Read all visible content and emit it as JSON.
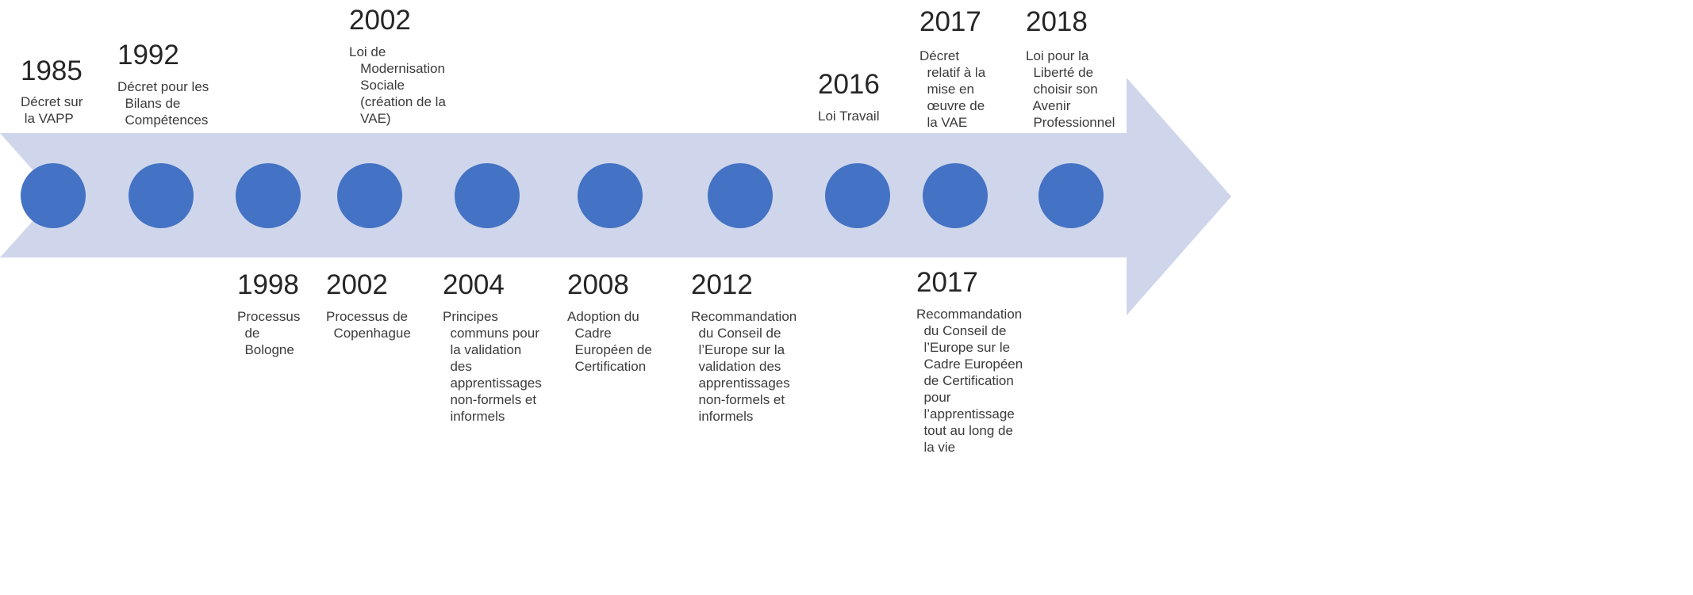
{
  "colors": {
    "arrow": "#cfd6ec",
    "circle": "#4472c4",
    "text": "#262626"
  },
  "top_events": [
    {
      "year": "1985",
      "text": "Décret sur\n la VAPP"
    },
    {
      "year": "1992",
      "text": "Décret pour les\n  Bilans de\n  Compétences"
    },
    {
      "year": "2002",
      "text": "Loi de\n   Modernisation\n   Sociale\n   (création de la\n   VAE)"
    },
    {
      "year": "2016",
      "text": "Loi Travail"
    },
    {
      "year": "2017",
      "text": "Décret\n  relatif à la\n  mise en\n  œuvre de\n  la VAE"
    },
    {
      "year": "2018",
      "text": "Loi pour la\n  Liberté de\n  choisir son\n  Avenir\n  Professionnel"
    }
  ],
  "bottom_events": [
    {
      "year": "1998",
      "text": "Processus\n  de\n  Bologne"
    },
    {
      "year": "2002",
      "text": "Processus de\n  Copenhague"
    },
    {
      "year": "2004",
      "text": "Principes\n  communs pour\n  la validation\n  des\n  apprentissages\n  non-formels et\n  informels"
    },
    {
      "year": "2008",
      "text": "Adoption du\n  Cadre\n  Européen de\n  Certification"
    },
    {
      "year": "2012",
      "text": "Recommandation\n  du Conseil de\n  l’Europe sur la\n  validation des\n  apprentissages\n  non-formels et\n  informels"
    },
    {
      "year": "2017",
      "text": "Recommandation\n  du Conseil de\n  l’Europe sur le\n  Cadre Européen\n  de Certification\n  pour\n  l’apprentissage\n  tout au long de\n  la vie"
    }
  ]
}
